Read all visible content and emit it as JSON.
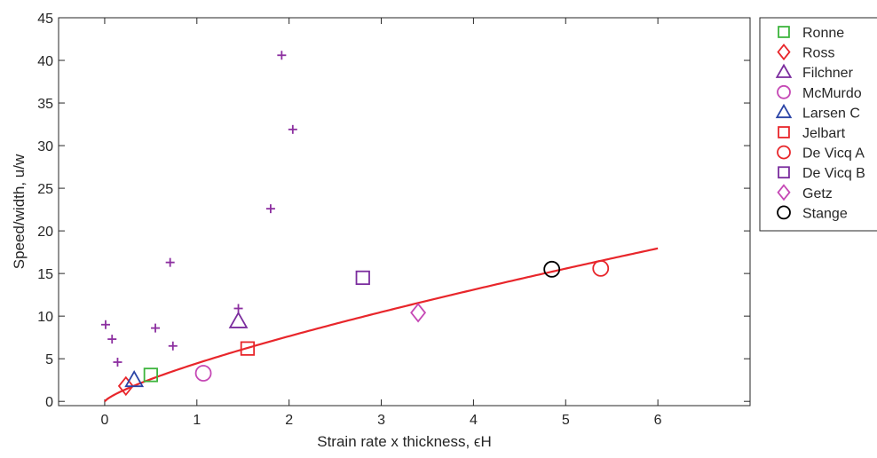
{
  "chart_data": {
    "type": "scatter",
    "title": "",
    "xlabel": "Strain rate x thickness, ϵH",
    "ylabel": "Speed/width, u/w",
    "xlim": [
      -0.5,
      7
    ],
    "ylim": [
      -0.5,
      45
    ],
    "xticks": [
      0,
      1,
      2,
      3,
      4,
      5,
      6
    ],
    "yticks": [
      0,
      5,
      10,
      15,
      20,
      25,
      30,
      35,
      40,
      45
    ],
    "grid": false,
    "legend_position": "right (outside, top)",
    "series": [
      {
        "name": "Ronne",
        "marker": "square",
        "color": "#3cb43c",
        "points": [
          [
            0.5,
            3.1
          ]
        ]
      },
      {
        "name": "Ross",
        "marker": "diamond",
        "color": "#e8262b",
        "points": [
          [
            0.23,
            1.8
          ]
        ]
      },
      {
        "name": "Filchner",
        "marker": "triangle",
        "color": "#7b2d9e",
        "points": [
          [
            1.45,
            9.4
          ]
        ]
      },
      {
        "name": "McMurdo",
        "marker": "circle",
        "color": "#c548b5",
        "points": [
          [
            1.07,
            3.3
          ]
        ]
      },
      {
        "name": "Larsen C",
        "marker": "triangle",
        "color": "#2b44a6",
        "points": [
          [
            0.32,
            2.5
          ]
        ]
      },
      {
        "name": "Jelbart",
        "marker": "square",
        "color": "#e8262b",
        "points": [
          [
            1.55,
            6.2
          ]
        ]
      },
      {
        "name": "De Vicq A",
        "marker": "circle",
        "color": "#e8262b",
        "points": [
          [
            5.38,
            15.6
          ]
        ]
      },
      {
        "name": "De Vicq B",
        "marker": "square",
        "color": "#7b2d9e",
        "points": [
          [
            2.8,
            14.5
          ]
        ]
      },
      {
        "name": "Getz",
        "marker": "diamond",
        "color": "#c548b5",
        "points": [
          [
            3.4,
            10.4
          ]
        ]
      },
      {
        "name": "Stange",
        "marker": "circle",
        "color": "#000000",
        "points": [
          [
            4.85,
            15.5
          ]
        ]
      }
    ],
    "extra_points": {
      "marker": "plus",
      "color": "#8c2fa0",
      "points": [
        [
          0.01,
          9.0
        ],
        [
          0.08,
          7.3
        ],
        [
          0.14,
          4.6
        ],
        [
          0.55,
          8.6
        ],
        [
          0.71,
          16.3
        ],
        [
          0.74,
          6.5
        ],
        [
          1.45,
          10.9
        ],
        [
          1.8,
          22.6
        ],
        [
          1.92,
          40.6
        ],
        [
          2.04,
          31.9
        ]
      ]
    },
    "fit_curve": {
      "color": "#e8262b",
      "form": "y = 4.46 * x^0.777",
      "x_range": [
        0,
        6
      ]
    },
    "colors": {
      "axis": "#262626",
      "background": "#ffffff",
      "fit": "#e8262b"
    }
  }
}
